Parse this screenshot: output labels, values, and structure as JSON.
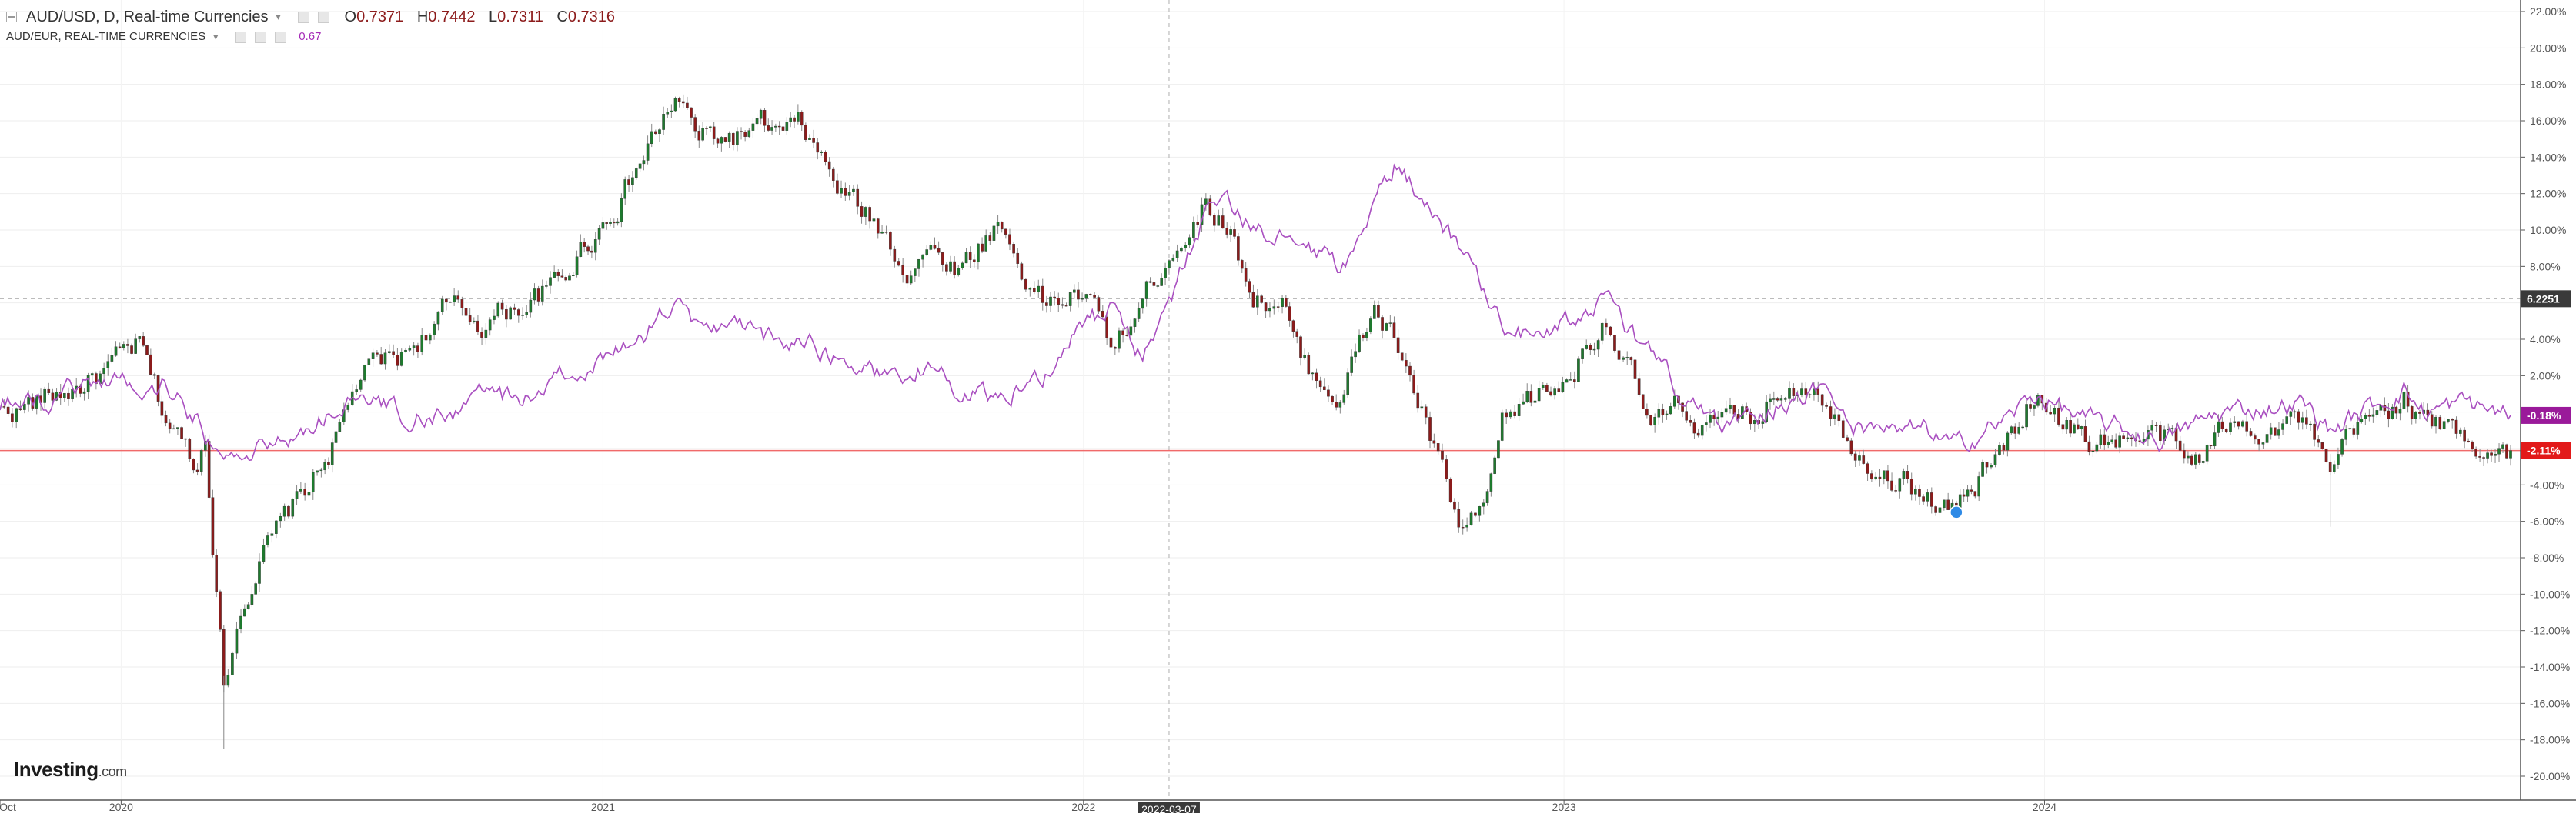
{
  "legend": {
    "symbol": "AUD/USD, D, Real-time Currencies",
    "ohlc": [
      {
        "k": "O",
        "v": "0.7371"
      },
      {
        "k": "H",
        "v": "0.7442"
      },
      {
        "k": "L",
        "v": "0.7311"
      },
      {
        "k": "C",
        "v": "0.7316"
      }
    ],
    "compare_symbol": "AUD/EUR, REAL-TIME CURRENCIES",
    "compare_value": "0.67"
  },
  "logo": {
    "brand": "Investing",
    "suffix": ".com"
  },
  "colors": {
    "up": "#1e7a2e",
    "down": "#8c1b1b",
    "compare_line": "#a94fc0",
    "baseline": "#f06a6a",
    "crosshair_tag": "#3a3a3a",
    "last_tag": "#e21a1a",
    "compare_tag": "#9a1a9a"
  },
  "chart_data": {
    "type": "line",
    "x_axis_labels": [
      {
        "label": "Oct",
        "date": "2019-10-01"
      },
      {
        "label": "2020",
        "date": "2020-01-01"
      },
      {
        "label": "2021",
        "date": "2021-01-01"
      },
      {
        "label": "2022",
        "date": "2022-01-01"
      },
      {
        "label": "2023",
        "date": "2023-01-01"
      },
      {
        "label": "2024",
        "date": "2024-01-01"
      }
    ],
    "y_axis": {
      "unit": "%",
      "ylim": [
        -20.5,
        22.5
      ],
      "ticks": [
        "22.00%",
        "20.00%",
        "18.00%",
        "16.00%",
        "14.00%",
        "12.00%",
        "10.00%",
        "8.00%",
        "6.00%",
        "4.00%",
        "2.00%",
        "0.00%",
        "-2.00%",
        "-4.00%",
        "-6.00%",
        "-8.00%",
        "-10.00%",
        "-12.00%",
        "-14.00%",
        "-16.00%",
        "-18.00%",
        "-20.00%"
      ]
    },
    "xlim": [
      "2019-10-01",
      "2024-12-20"
    ],
    "crosshair": {
      "date_label": "2022-03-07",
      "date": "2022-03-07",
      "value_label": "6.2251",
      "value": 6.2251
    },
    "price_tags": [
      {
        "label": "-0.18%",
        "value": -0.18,
        "role": "compare"
      },
      {
        "label": "-2.11%",
        "value": -2.11,
        "role": "last"
      }
    ],
    "baseline_value": -2.11,
    "series": [
      {
        "role": "main",
        "style": "candlestick",
        "points": [
          [
            "2019-10-01",
            0.0
          ],
          [
            "2019-11-01",
            0.6
          ],
          [
            "2019-12-01",
            1.5
          ],
          [
            "2019-12-31",
            2.6
          ],
          [
            "2020-01-15",
            3.5
          ],
          [
            "2020-02-01",
            0.0
          ],
          [
            "2020-02-28",
            -3.0
          ],
          [
            "2020-03-05",
            -1.0
          ],
          [
            "2020-03-19",
            -15.0
          ],
          [
            "2020-04-01",
            -10.5
          ],
          [
            "2020-04-15",
            -8.0
          ],
          [
            "2020-05-01",
            -6.5
          ],
          [
            "2020-06-01",
            -3.0
          ],
          [
            "2020-06-15",
            -1.0
          ],
          [
            "2020-07-01",
            2.0
          ],
          [
            "2020-08-01",
            3.0
          ],
          [
            "2020-09-01",
            5.5
          ],
          [
            "2020-10-01",
            5.0
          ],
          [
            "2020-11-01",
            6.0
          ],
          [
            "2020-12-01",
            7.0
          ],
          [
            "2020-12-15",
            9.0
          ],
          [
            "2021-01-01",
            10.5
          ],
          [
            "2021-01-15",
            12.0
          ],
          [
            "2021-02-01",
            14.0
          ],
          [
            "2021-02-25",
            17.2
          ],
          [
            "2021-03-15",
            15.0
          ],
          [
            "2021-04-01",
            15.0
          ],
          [
            "2021-05-01",
            15.5
          ],
          [
            "2021-05-15",
            15.0
          ],
          [
            "2021-06-01",
            15.5
          ],
          [
            "2021-07-01",
            12.0
          ],
          [
            "2021-08-01",
            10.0
          ],
          [
            "2021-08-20",
            8.0
          ],
          [
            "2021-09-01",
            9.0
          ],
          [
            "2021-10-01",
            8.0
          ],
          [
            "2021-10-28",
            10.5
          ],
          [
            "2021-11-15",
            8.0
          ],
          [
            "2021-12-01",
            6.0
          ],
          [
            "2021-12-31",
            6.5
          ],
          [
            "2022-01-25",
            3.5
          ],
          [
            "2022-02-15",
            6.0
          ],
          [
            "2022-03-07",
            9.0
          ],
          [
            "2022-04-04",
            11.5
          ],
          [
            "2022-04-20",
            10.5
          ],
          [
            "2022-05-10",
            6.5
          ],
          [
            "2022-06-01",
            6.0
          ],
          [
            "2022-06-15",
            2.5
          ],
          [
            "2022-07-15",
            1.0
          ],
          [
            "2022-08-10",
            5.5
          ],
          [
            "2022-08-25",
            4.0
          ],
          [
            "2022-09-15",
            0.0
          ],
          [
            "2022-10-13",
            -6.5
          ],
          [
            "2022-11-01",
            -6.0
          ],
          [
            "2022-11-15",
            -1.0
          ],
          [
            "2022-12-01",
            0.5
          ],
          [
            "2022-12-31",
            1.5
          ],
          [
            "2023-02-02",
            5.5
          ],
          [
            "2023-02-15",
            3.0
          ],
          [
            "2023-03-08",
            -1.0
          ],
          [
            "2023-04-01",
            0.0
          ],
          [
            "2023-05-01",
            -1.0
          ],
          [
            "2023-06-01",
            0.0
          ],
          [
            "2023-06-15",
            1.5
          ],
          [
            "2023-07-13",
            2.0
          ],
          [
            "2023-08-01",
            -1.0
          ],
          [
            "2023-09-01",
            -3.0
          ],
          [
            "2023-10-01",
            -4.5
          ],
          [
            "2023-10-26",
            -5.5
          ],
          [
            "2023-11-15",
            -3.5
          ],
          [
            "2023-12-01",
            -2.0
          ],
          [
            "2023-12-27",
            1.5
          ],
          [
            "2024-01-15",
            -0.5
          ],
          [
            "2024-02-01",
            -1.5
          ],
          [
            "2024-03-01",
            -1.5
          ],
          [
            "2024-04-01",
            -1.5
          ],
          [
            "2024-04-19",
            -3.0
          ],
          [
            "2024-05-15",
            -1.0
          ],
          [
            "2024-06-15",
            -0.5
          ],
          [
            "2024-07-15",
            -0.5
          ],
          [
            "2024-08-05",
            -4.0
          ],
          [
            "2024-08-20",
            -1.5
          ],
          [
            "2024-09-30",
            1.0
          ],
          [
            "2024-10-15",
            -0.5
          ],
          [
            "2024-11-15",
            -1.5
          ],
          [
            "2024-12-20",
            -2.11
          ]
        ]
      },
      {
        "role": "compare",
        "style": "line",
        "points": [
          [
            "2019-10-01",
            0.5
          ],
          [
            "2019-11-01",
            0.5
          ],
          [
            "2019-12-01",
            1.5
          ],
          [
            "2019-12-31",
            2.0
          ],
          [
            "2020-01-15",
            1.0
          ],
          [
            "2020-02-01",
            1.5
          ],
          [
            "2020-02-28",
            -0.5
          ],
          [
            "2020-03-19",
            -3.0
          ],
          [
            "2020-04-15",
            -2.0
          ],
          [
            "2020-05-01",
            -1.5
          ],
          [
            "2020-06-01",
            -0.5
          ],
          [
            "2020-06-15",
            0.5
          ],
          [
            "2020-07-01",
            0.5
          ],
          [
            "2020-08-01",
            0.0
          ],
          [
            "2020-09-01",
            -0.5
          ],
          [
            "2020-10-01",
            1.0
          ],
          [
            "2020-11-01",
            0.5
          ],
          [
            "2020-12-01",
            2.0
          ],
          [
            "2021-01-01",
            3.0
          ],
          [
            "2021-02-01",
            4.0
          ],
          [
            "2021-02-25",
            6.2
          ],
          [
            "2021-03-15",
            4.0
          ],
          [
            "2021-04-01",
            5.0
          ],
          [
            "2021-05-01",
            4.0
          ],
          [
            "2021-06-01",
            4.0
          ],
          [
            "2021-07-01",
            3.0
          ],
          [
            "2021-08-01",
            2.0
          ],
          [
            "2021-09-01",
            2.5
          ],
          [
            "2021-10-01",
            1.0
          ],
          [
            "2021-11-01",
            1.0
          ],
          [
            "2021-12-01",
            2.0
          ],
          [
            "2021-12-31",
            5.0
          ],
          [
            "2022-01-25",
            5.5
          ],
          [
            "2022-02-15",
            3.0
          ],
          [
            "2022-03-07",
            6.0
          ],
          [
            "2022-04-04",
            11.0
          ],
          [
            "2022-04-20",
            12.0
          ],
          [
            "2022-05-10",
            10.0
          ],
          [
            "2022-06-15",
            9.0
          ],
          [
            "2022-07-15",
            8.0
          ],
          [
            "2022-08-10",
            11.0
          ],
          [
            "2022-08-25",
            13.5
          ],
          [
            "2022-09-15",
            12.0
          ],
          [
            "2022-10-13",
            9.0
          ],
          [
            "2022-11-01",
            7.0
          ],
          [
            "2022-11-15",
            5.0
          ],
          [
            "2022-12-01",
            4.5
          ],
          [
            "2022-12-31",
            5.0
          ],
          [
            "2023-02-02",
            6.0
          ],
          [
            "2023-03-08",
            3.0
          ],
          [
            "2023-04-01",
            1.0
          ],
          [
            "2023-05-01",
            -1.0
          ],
          [
            "2023-06-01",
            0.0
          ],
          [
            "2023-07-13",
            1.5
          ],
          [
            "2023-08-01",
            -0.5
          ],
          [
            "2023-09-01",
            -1.5
          ],
          [
            "2023-10-01",
            -1.0
          ],
          [
            "2023-10-26",
            -2.0
          ],
          [
            "2023-11-15",
            -1.0
          ],
          [
            "2023-12-01",
            -0.5
          ],
          [
            "2023-12-27",
            1.0
          ],
          [
            "2024-02-01",
            -0.5
          ],
          [
            "2024-04-01",
            -1.5
          ],
          [
            "2024-05-15",
            0.0
          ],
          [
            "2024-07-15",
            0.5
          ],
          [
            "2024-08-05",
            -1.0
          ],
          [
            "2024-09-30",
            1.3
          ],
          [
            "2024-10-15",
            0.0
          ],
          [
            "2024-11-15",
            0.5
          ],
          [
            "2024-12-20",
            -0.18
          ]
        ]
      }
    ]
  }
}
